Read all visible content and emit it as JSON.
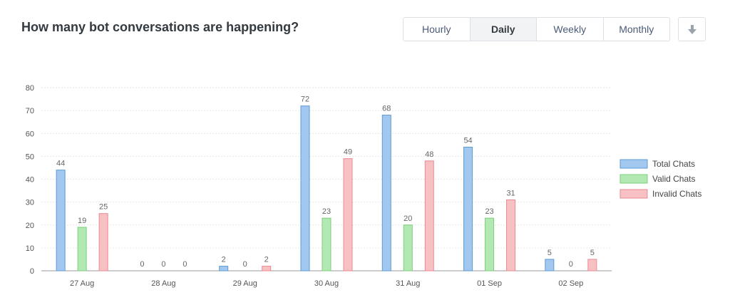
{
  "header": {
    "title": "How many bot conversations are happening?",
    "periods": [
      "Hourly",
      "Daily",
      "Weekly",
      "Monthly"
    ],
    "active_period": "Daily",
    "download_icon": "arrow-down-icon"
  },
  "chart_data": {
    "type": "bar",
    "categories": [
      "27 Aug",
      "28 Aug",
      "29 Aug",
      "30 Aug",
      "31 Aug",
      "01 Sep",
      "02 Sep"
    ],
    "series": [
      {
        "name": "Total Chats",
        "values": [
          44,
          0,
          2,
          72,
          68,
          54,
          5
        ],
        "fill": "#a3c8f0",
        "stroke": "#5b9bd5"
      },
      {
        "name": "Valid Chats",
        "values": [
          19,
          0,
          0,
          23,
          20,
          23,
          0
        ],
        "fill": "#b2e8b2",
        "stroke": "#7ccf7c"
      },
      {
        "name": "Invalid Chats",
        "values": [
          25,
          0,
          2,
          49,
          48,
          31,
          5
        ],
        "fill": "#f7c1c4",
        "stroke": "#e88a90"
      }
    ],
    "ylim": [
      0,
      80
    ],
    "yticks": [
      0,
      10,
      20,
      30,
      40,
      50,
      60,
      70,
      80
    ],
    "grid": true,
    "legend_position": "right"
  }
}
